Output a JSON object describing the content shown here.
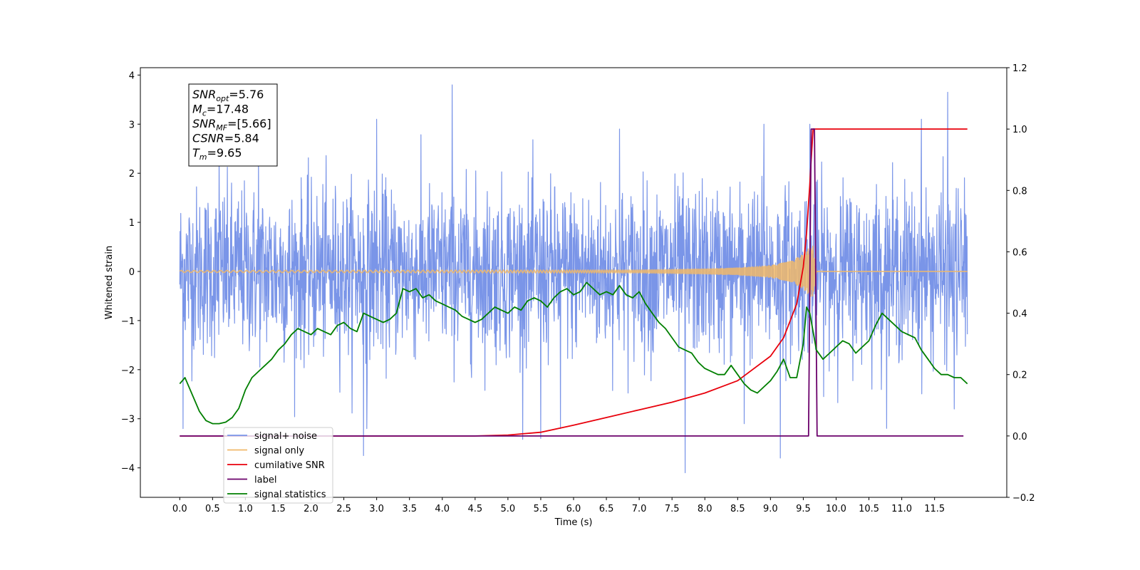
{
  "chart_data": {
    "type": "line",
    "xlabel": "Time (s)",
    "ylabel": "Whitened strain",
    "xlim": [
      -0.6,
      12.6
    ],
    "xticks": [
      0.0,
      0.5,
      1.0,
      1.5,
      2.0,
      2.5,
      3.0,
      3.5,
      4.0,
      4.5,
      5.0,
      5.5,
      6.0,
      6.5,
      7.0,
      7.5,
      8.0,
      8.5,
      9.0,
      9.5,
      10.0,
      10.5,
      11.0,
      11.5
    ],
    "xtick_labels": [
      "0.0",
      "0.5",
      "1.0",
      "1.5",
      "2.0",
      "2.5",
      "3.0",
      "3.5",
      "4.0",
      "4.5",
      "5.0",
      "5.5",
      "6.0",
      "6.5",
      "7.0",
      "7.5",
      "8.0",
      "8.5",
      "9.0",
      "9.5",
      "10.0",
      "10.5",
      "11.0",
      "11.5"
    ],
    "ylim_left": [
      -4.6,
      4.15
    ],
    "yticks_left": [
      4,
      3,
      2,
      1,
      0,
      -1,
      -2,
      -3,
      -4
    ],
    "ytick_labels_left": [
      "4",
      "3",
      "2",
      "1",
      "0",
      "−1",
      "−2",
      "−3",
      "−4"
    ],
    "ylim_right": [
      -0.2,
      1.2
    ],
    "yticks_right": [
      1.2,
      1.0,
      0.8,
      0.6,
      0.4,
      0.2,
      0.0,
      -0.2
    ],
    "ytick_labels_right": [
      "1.2",
      "1.0",
      "0.8",
      "0.6",
      "0.4",
      "0.2",
      "0.0",
      "−0.2"
    ],
    "grid": false,
    "legend_position": "lower-left",
    "annotation": [
      {
        "sym": "SNR",
        "sub": "opt",
        "val": "=5.76"
      },
      {
        "sym": "M",
        "sub": "c",
        "val": "=17.48"
      },
      {
        "sym": "SNR",
        "sub": "MF",
        "val": "=[5.66]"
      },
      {
        "sym": "CSNR",
        "sub": "",
        "val": "=5.84"
      },
      {
        "sym": "T",
        "sub": "m",
        "val": "=9.65"
      }
    ],
    "series": [
      {
        "name": "signal+ noise",
        "axis": "left",
        "color": "#7a95e8",
        "kind": "noisy",
        "x_range": [
          0.0,
          12.0
        ],
        "approx_std": 0.85,
        "visible_peaks": [
          [
            0.05,
            -3.2
          ],
          [
            0.6,
            2.6
          ],
          [
            1.2,
            2.3
          ],
          [
            2.8,
            -3.75
          ],
          [
            2.85,
            -3.2
          ],
          [
            3.0,
            3.1
          ],
          [
            4.15,
            3.8
          ],
          [
            5.5,
            -3.4
          ],
          [
            5.8,
            -3.2
          ],
          [
            6.7,
            2.9
          ],
          [
            7.7,
            -4.1
          ],
          [
            8.6,
            -3.1
          ],
          [
            8.9,
            3.0
          ],
          [
            9.15,
            -3.8
          ],
          [
            9.6,
            3.0
          ],
          [
            11.3,
            3.1
          ],
          [
            11.7,
            3.65
          ],
          [
            11.8,
            -2.8
          ]
        ]
      },
      {
        "name": "signal only",
        "axis": "left",
        "color": "#f0b96a",
        "kind": "chirp",
        "x": [
          0.0,
          7.0,
          8.0,
          8.5,
          9.0,
          9.3,
          9.5,
          9.6,
          9.65,
          9.7,
          12.0
        ],
        "envelope": [
          0.02,
          0.03,
          0.05,
          0.07,
          0.12,
          0.2,
          0.35,
          0.5,
          0.52,
          0.0,
          0.0
        ]
      },
      {
        "name": "cumilative SNR",
        "axis": "right",
        "color": "#e8000b",
        "x": [
          0.0,
          4.5,
          5.0,
          5.5,
          6.0,
          6.5,
          7.0,
          7.5,
          8.0,
          8.5,
          9.0,
          9.2,
          9.4,
          9.5,
          9.55,
          9.6,
          9.62,
          9.65,
          12.0
        ],
        "values": [
          0.0,
          0.0,
          0.003,
          0.012,
          0.035,
          0.06,
          0.085,
          0.11,
          0.14,
          0.18,
          0.26,
          0.32,
          0.43,
          0.55,
          0.66,
          0.82,
          0.9,
          1.0,
          1.0
        ]
      },
      {
        "name": "label",
        "axis": "right",
        "color": "#6b006b",
        "x": [
          0.0,
          9.58,
          9.62,
          9.67,
          9.71,
          11.94
        ],
        "values": [
          0.0,
          0.0,
          1.0,
          1.0,
          0.0,
          0.0
        ]
      },
      {
        "name": "signal statistics",
        "axis": "right",
        "color": "#007f00",
        "x": [
          0.0,
          0.08,
          0.2,
          0.3,
          0.4,
          0.5,
          0.6,
          0.7,
          0.8,
          0.9,
          1.0,
          1.1,
          1.2,
          1.3,
          1.4,
          1.5,
          1.6,
          1.7,
          1.8,
          1.9,
          2.0,
          2.1,
          2.2,
          2.3,
          2.4,
          2.5,
          2.6,
          2.7,
          2.8,
          2.9,
          3.0,
          3.1,
          3.2,
          3.3,
          3.4,
          3.5,
          3.6,
          3.7,
          3.8,
          3.9,
          4.0,
          4.1,
          4.2,
          4.3,
          4.4,
          4.5,
          4.6,
          4.7,
          4.8,
          4.9,
          5.0,
          5.1,
          5.2,
          5.3,
          5.4,
          5.5,
          5.6,
          5.7,
          5.8,
          5.9,
          6.0,
          6.1,
          6.2,
          6.3,
          6.4,
          6.5,
          6.6,
          6.7,
          6.8,
          6.9,
          7.0,
          7.1,
          7.2,
          7.3,
          7.4,
          7.5,
          7.6,
          7.7,
          7.8,
          7.9,
          8.0,
          8.1,
          8.2,
          8.3,
          8.4,
          8.5,
          8.6,
          8.7,
          8.8,
          8.9,
          9.0,
          9.1,
          9.2,
          9.3,
          9.4,
          9.5,
          9.55,
          9.6,
          9.7,
          9.8,
          9.9,
          10.0,
          10.1,
          10.2,
          10.3,
          10.4,
          10.5,
          10.6,
          10.7,
          10.8,
          10.9,
          11.0,
          11.1,
          11.2,
          11.3,
          11.4,
          11.5,
          11.6,
          11.7,
          11.8,
          11.9,
          12.0
        ],
        "values": [
          0.17,
          0.19,
          0.13,
          0.08,
          0.05,
          0.04,
          0.04,
          0.045,
          0.06,
          0.09,
          0.15,
          0.19,
          0.21,
          0.23,
          0.25,
          0.28,
          0.3,
          0.33,
          0.35,
          0.34,
          0.33,
          0.35,
          0.34,
          0.33,
          0.36,
          0.37,
          0.35,
          0.34,
          0.4,
          0.39,
          0.38,
          0.37,
          0.38,
          0.4,
          0.48,
          0.47,
          0.48,
          0.45,
          0.46,
          0.44,
          0.43,
          0.42,
          0.41,
          0.39,
          0.38,
          0.37,
          0.38,
          0.4,
          0.42,
          0.41,
          0.4,
          0.42,
          0.41,
          0.44,
          0.45,
          0.44,
          0.42,
          0.45,
          0.47,
          0.48,
          0.46,
          0.47,
          0.5,
          0.48,
          0.46,
          0.47,
          0.46,
          0.49,
          0.46,
          0.45,
          0.47,
          0.43,
          0.4,
          0.37,
          0.35,
          0.32,
          0.29,
          0.28,
          0.27,
          0.24,
          0.22,
          0.21,
          0.2,
          0.2,
          0.23,
          0.2,
          0.17,
          0.15,
          0.14,
          0.16,
          0.18,
          0.21,
          0.25,
          0.19,
          0.19,
          0.3,
          0.42,
          0.4,
          0.28,
          0.25,
          0.27,
          0.29,
          0.31,
          0.3,
          0.27,
          0.29,
          0.31,
          0.36,
          0.4,
          0.38,
          0.36,
          0.34,
          0.33,
          0.32,
          0.28,
          0.25,
          0.22,
          0.2,
          0.2,
          0.19,
          0.19,
          0.17
        ]
      }
    ]
  }
}
